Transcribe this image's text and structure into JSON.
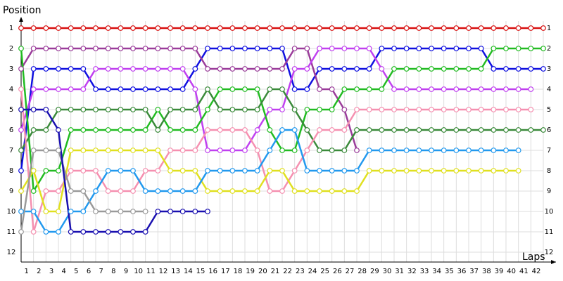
{
  "chart_data": {
    "type": "line",
    "y_label": "Position",
    "x_label": "Laps",
    "x": [
      0,
      1,
      2,
      3,
      4,
      5,
      6,
      7,
      8,
      9,
      10,
      11,
      12,
      13,
      14,
      15,
      16,
      17,
      18,
      19,
      20,
      21,
      22,
      23,
      24,
      25,
      26,
      27,
      28,
      29,
      30,
      31,
      32,
      33,
      34,
      35,
      36,
      37,
      38,
      39,
      40,
      41,
      42
    ],
    "xlim": [
      0,
      42
    ],
    "xticks": [
      1,
      2,
      3,
      4,
      5,
      6,
      7,
      8,
      9,
      10,
      11,
      12,
      13,
      14,
      15,
      16,
      17,
      18,
      19,
      20,
      21,
      22,
      23,
      24,
      25,
      26,
      27,
      28,
      29,
      30,
      31,
      32,
      33,
      34,
      35,
      36,
      37,
      38,
      39,
      40,
      41,
      42
    ],
    "ylim": [
      1,
      12
    ],
    "yticks": [
      1,
      2,
      3,
      4,
      5,
      6,
      7,
      8,
      9,
      10,
      11,
      12
    ],
    "y_inverted": true,
    "grid": true,
    "series": [
      {
        "color": "#d81010",
        "values": [
          1,
          1,
          1,
          1,
          1,
          1,
          1,
          1,
          1,
          1,
          1,
          1,
          1,
          1,
          1,
          1,
          1,
          1,
          1,
          1,
          1,
          1,
          1,
          1,
          1,
          1,
          1,
          1,
          1,
          1,
          1,
          1,
          1,
          1,
          1,
          1,
          1,
          1,
          1,
          1,
          1,
          1,
          1
        ]
      },
      {
        "color": "#1010e0",
        "values": [
          8,
          3,
          3,
          3,
          3,
          3,
          4,
          4,
          4,
          4,
          4,
          4,
          4,
          4,
          3,
          2,
          2,
          2,
          2,
          2,
          2,
          2,
          4,
          4,
          3,
          3,
          3,
          3,
          3,
          2,
          2,
          2,
          2,
          2,
          2,
          2,
          2,
          2,
          3,
          3,
          3,
          3,
          3
        ]
      },
      {
        "color": "#9a3c9a",
        "values": [
          3,
          2,
          2,
          2,
          2,
          2,
          2,
          2,
          2,
          2,
          2,
          2,
          2,
          2,
          2,
          3,
          3,
          3,
          3,
          3,
          3,
          3,
          2,
          2,
          4,
          4,
          5,
          7,
          null,
          null,
          null,
          null,
          null,
          null,
          null,
          null,
          null,
          null,
          null,
          null,
          null,
          null,
          null
        ]
      },
      {
        "color": "#c040f0",
        "values": [
          6,
          4,
          4,
          4,
          4,
          4,
          3,
          3,
          3,
          3,
          3,
          3,
          3,
          3,
          4,
          7,
          7,
          7,
          7,
          6,
          5,
          5,
          3,
          3,
          2,
          2,
          2,
          2,
          2,
          3,
          4,
          4,
          4,
          4,
          4,
          4,
          4,
          4,
          4,
          4,
          4,
          4,
          null
        ]
      },
      {
        "color": "#22bb22",
        "values": [
          2,
          9,
          8,
          8,
          6,
          6,
          6,
          6,
          6,
          6,
          6,
          5,
          6,
          6,
          6,
          5,
          4,
          4,
          4,
          4,
          6,
          7,
          7,
          5,
          5,
          5,
          4,
          4,
          4,
          4,
          3,
          3,
          3,
          3,
          3,
          3,
          3,
          3,
          2,
          2,
          2,
          2,
          2
        ]
      },
      {
        "color": "#3a8a3a",
        "values": [
          7,
          6,
          6,
          5,
          5,
          5,
          5,
          5,
          5,
          5,
          5,
          6,
          5,
          5,
          5,
          4,
          5,
          5,
          5,
          5,
          4,
          4,
          5,
          6,
          7,
          7,
          7,
          6,
          6,
          6,
          6,
          6,
          6,
          6,
          6,
          6,
          6,
          6,
          6,
          6,
          6,
          6,
          6
        ]
      },
      {
        "color": "#f590b0",
        "values": [
          4,
          11,
          9,
          9,
          8,
          8,
          8,
          9,
          9,
          9,
          8,
          8,
          7,
          7,
          7,
          6,
          6,
          6,
          6,
          7,
          9,
          9,
          8,
          7,
          6,
          6,
          6,
          5,
          5,
          5,
          5,
          5,
          5,
          5,
          5,
          5,
          5,
          5,
          5,
          5,
          5,
          5,
          null
        ]
      },
      {
        "color": "#e0e020",
        "values": [
          9,
          8,
          10,
          10,
          7,
          7,
          7,
          7,
          7,
          7,
          7,
          7,
          8,
          8,
          8,
          9,
          9,
          9,
          9,
          9,
          8,
          8,
          9,
          9,
          9,
          9,
          9,
          9,
          8,
          8,
          8,
          8,
          8,
          8,
          8,
          8,
          8,
          8,
          8,
          8,
          8,
          null,
          null
        ]
      },
      {
        "color": "#2299ee",
        "values": [
          10,
          10,
          11,
          11,
          10,
          10,
          9,
          8,
          8,
          8,
          9,
          9,
          9,
          9,
          9,
          8,
          8,
          8,
          8,
          8,
          7,
          6,
          6,
          8,
          8,
          8,
          8,
          8,
          7,
          7,
          7,
          7,
          7,
          7,
          7,
          7,
          7,
          7,
          7,
          7,
          7,
          null,
          null
        ]
      },
      {
        "color": "#9a9a9a",
        "values": [
          11,
          7,
          7,
          7,
          9,
          9,
          10,
          10,
          10,
          10,
          10,
          null,
          null,
          null,
          null,
          null,
          null,
          null,
          null,
          null,
          null,
          null,
          null,
          null,
          null,
          null,
          null,
          null,
          null,
          null,
          null,
          null,
          null,
          null,
          null,
          null,
          null,
          null,
          null,
          null,
          null,
          null,
          null
        ]
      },
      {
        "color": "#1a10b0",
        "values": [
          5,
          5,
          5,
          6,
          11,
          11,
          11,
          11,
          11,
          11,
          11,
          10,
          10,
          10,
          10,
          10,
          null,
          null,
          null,
          null,
          null,
          null,
          null,
          null,
          null,
          null,
          null,
          null,
          null,
          null,
          null,
          null,
          null,
          null,
          null,
          null,
          null,
          null,
          null,
          null,
          null,
          null,
          null
        ]
      }
    ]
  }
}
